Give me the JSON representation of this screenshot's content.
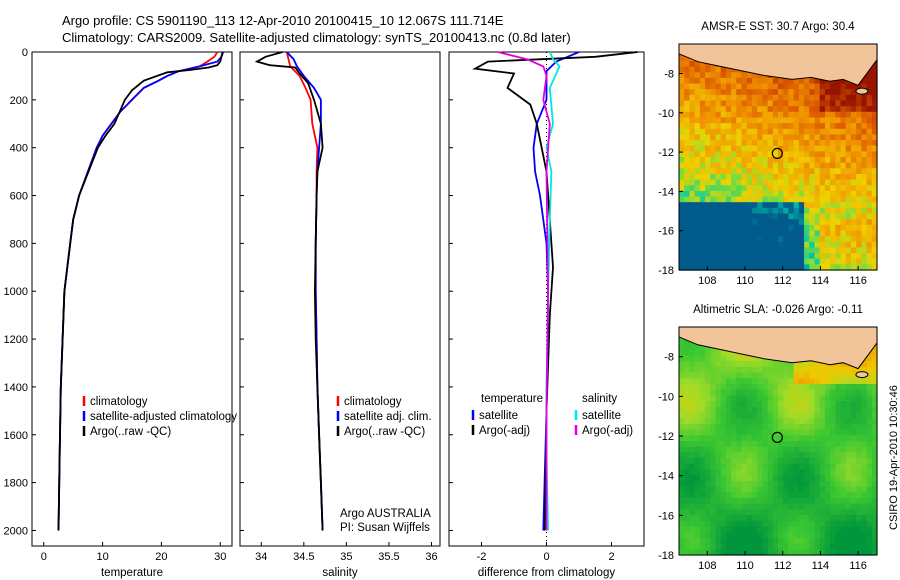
{
  "title": {
    "line1": "Argo profile: CS 5901190_113 12-Apr-2010 20100415_10 12.067S 111.714E",
    "line2": "Climatology: CARS2009. Satellite-adjusted climatology: synTS_20100413.nc (0.8d later)"
  },
  "stamp": "CSIRO 19-Apr-2010 10:30:46",
  "colors": {
    "climatology": "#ff0000",
    "satellite": "#0000ff",
    "argo": "#000000",
    "sal_satellite": "#00e5e5",
    "sal_argo": "#e000e0",
    "land": "#f2c49a"
  },
  "chart_data": [
    {
      "type": "line",
      "xlabel": "temperature",
      "ylabel": "",
      "xlim": [
        -2,
        32
      ],
      "ylim": [
        2000,
        0
      ],
      "xticks": [
        0,
        10,
        20,
        30
      ],
      "yticks": [
        0,
        200,
        400,
        600,
        800,
        1000,
        1200,
        1400,
        1600,
        1800,
        2000
      ],
      "legend": {
        "position": "lower-right",
        "entries": [
          "climatology",
          "satellite-adjusted climatology",
          "Argo(..raw -QC)"
        ]
      },
      "series": [
        {
          "name": "climatology",
          "color": "#ff0000",
          "x": [
            29.5,
            29.0,
            27.8,
            26.5,
            23.0,
            21.0,
            19.5,
            17.0,
            15.0,
            13.0,
            11.5,
            10.0,
            9.0,
            7.5,
            6.0,
            5.0,
            4.5,
            4.0,
            3.5,
            3.2,
            2.9,
            2.7,
            2.5
          ],
          "y": [
            0,
            20,
            40,
            60,
            80,
            100,
            120,
            150,
            200,
            250,
            300,
            350,
            400,
            500,
            600,
            700,
            800,
            900,
            1000,
            1200,
            1400,
            1700,
            2000
          ]
        },
        {
          "name": "satellite-adjusted climatology",
          "color": "#0000ff",
          "x": [
            30.5,
            30.2,
            29.5,
            26.5,
            23.0,
            21.0,
            19.5,
            17.0,
            15.0,
            13.0,
            11.5,
            10.0,
            9.0,
            7.5,
            6.0,
            5.0,
            4.5,
            4.0,
            3.5,
            3.2,
            2.9,
            2.7,
            2.5
          ],
          "y": [
            0,
            20,
            40,
            60,
            80,
            100,
            120,
            150,
            200,
            250,
            300,
            350,
            400,
            500,
            600,
            700,
            800,
            900,
            1000,
            1200,
            1400,
            1700,
            2000
          ]
        },
        {
          "name": "Argo(..raw -QC)",
          "color": "#000000",
          "x": [
            30.4,
            30.2,
            30.0,
            29.5,
            28.0,
            25.0,
            21.0,
            17.0,
            15.0,
            13.8,
            12.0,
            10.5,
            9.2,
            7.6,
            6.0,
            5.0,
            4.5,
            4.0,
            3.5,
            3.2,
            2.9,
            2.7,
            2.5
          ],
          "y": [
            0,
            20,
            40,
            55,
            65,
            75,
            85,
            120,
            160,
            200,
            300,
            350,
            400,
            500,
            600,
            700,
            800,
            900,
            1000,
            1200,
            1400,
            1700,
            2000
          ]
        }
      ]
    },
    {
      "type": "line",
      "xlabel": "salinity",
      "ylabel": "",
      "xlim": [
        33.75,
        36.1
      ],
      "ylim": [
        2000,
        0
      ],
      "xticks": [
        34,
        34.5,
        35,
        35.5,
        36
      ],
      "legend": {
        "position": "lower-right",
        "entries": [
          "climatology",
          "satellite adj. clim.",
          "Argo(..raw -QC)"
        ]
      },
      "annotation": [
        "Argo AUSTRALIA",
        "PI: Susan Wijffels"
      ],
      "series": [
        {
          "name": "climatology",
          "color": "#ff0000",
          "x": [
            34.3,
            34.32,
            34.34,
            34.45,
            34.52,
            34.58,
            34.6,
            34.66,
            34.65,
            34.65,
            34.64,
            34.64,
            34.65,
            34.66,
            34.68,
            34.7,
            34.72
          ],
          "y": [
            0,
            30,
            60,
            100,
            150,
            200,
            300,
            400,
            500,
            600,
            800,
            1000,
            1200,
            1400,
            1600,
            1800,
            2000
          ]
        },
        {
          "name": "satellite adj. clim.",
          "color": "#0000ff",
          "x": [
            34.3,
            34.38,
            34.42,
            34.5,
            34.62,
            34.7,
            34.7,
            34.68,
            34.66,
            34.65,
            34.64,
            34.64,
            34.65,
            34.66,
            34.68,
            34.7,
            34.72
          ],
          "y": [
            0,
            30,
            60,
            100,
            150,
            200,
            300,
            400,
            500,
            600,
            800,
            1000,
            1200,
            1400,
            1600,
            1800,
            2000
          ]
        },
        {
          "name": "Argo(..raw -QC)",
          "color": "#000000",
          "x": [
            34.25,
            34.05,
            33.95,
            34.1,
            34.4,
            34.45,
            34.55,
            34.62,
            34.7,
            34.72,
            34.66,
            34.65,
            34.64,
            34.63,
            34.64,
            34.66,
            34.68,
            34.7,
            34.72
          ],
          "y": [
            0,
            20,
            40,
            55,
            65,
            90,
            130,
            200,
            300,
            400,
            500,
            600,
            800,
            1000,
            1200,
            1400,
            1600,
            1800,
            2000
          ]
        }
      ]
    },
    {
      "type": "line",
      "xlabel": "difference from climatology",
      "ylabel": "",
      "xlim": [
        -3,
        3
      ],
      "ylim": [
        2000,
        0
      ],
      "xticks": [
        -2,
        0,
        2
      ],
      "legend": {
        "position": "lower",
        "temperature": [
          "satellite",
          "Argo(-adj)"
        ],
        "salinity": [
          "satellite",
          "Argo(-adj)"
        ]
      },
      "series": [
        {
          "name": "temperature satellite",
          "color": "#0000ff",
          "x": [
            1.0,
            0.3,
            0.0,
            0.0,
            -0.3,
            -0.4,
            -0.35,
            -0.2,
            0.0,
            0.05,
            0.0,
            -0.1
          ],
          "y": [
            0,
            40,
            80,
            200,
            300,
            400,
            500,
            600,
            800,
            1000,
            1500,
            2000
          ]
        },
        {
          "name": "temperature Argo(-adj)",
          "color": "#000000",
          "x": [
            2.8,
            1.5,
            -1.8,
            -2.2,
            -1.0,
            -1.2,
            -0.5,
            -0.3,
            0.0,
            0.1,
            0.2,
            0.1,
            0.0,
            -0.05
          ],
          "y": [
            0,
            20,
            40,
            70,
            90,
            150,
            220,
            300,
            500,
            700,
            900,
            1100,
            1500,
            2000
          ]
        },
        {
          "name": "salinity satellite",
          "color": "#00e5e5",
          "x": [
            0.1,
            0.2,
            0.4,
            0.1,
            0.2,
            0.0,
            0.15,
            0.1,
            0.05,
            0.0,
            0.0,
            0.05
          ],
          "y": [
            0,
            30,
            60,
            150,
            300,
            400,
            500,
            700,
            1000,
            1400,
            1700,
            2000
          ]
        },
        {
          "name": "salinity Argo(-adj)",
          "color": "#e000e0",
          "x": [
            -1.5,
            -0.6,
            -0.1,
            0.0,
            -0.1,
            0.1,
            0.0,
            0.05,
            0.0,
            0.0
          ],
          "y": [
            0,
            30,
            60,
            100,
            200,
            300,
            500,
            1000,
            1500,
            2000
          ]
        }
      ]
    },
    {
      "type": "heatmap",
      "title": "AMSR-E SST: 30.7 Argo: 30.4",
      "xlim": [
        106.5,
        117
      ],
      "ylim": [
        -18,
        -6.5
      ],
      "xticks": [
        108,
        110,
        112,
        114,
        116
      ],
      "yticks": [
        -8,
        -10,
        -12,
        -14,
        -16,
        -18
      ],
      "marker": {
        "lon": 111.714,
        "lat": -12.067
      }
    },
    {
      "type": "heatmap",
      "title": "Altimetric SLA: -0.026 Argo: -0.11",
      "xlim": [
        106.5,
        117
      ],
      "ylim": [
        -18,
        -6.5
      ],
      "xticks": [
        108,
        110,
        112,
        114,
        116
      ],
      "yticks": [
        -8,
        -10,
        -12,
        -14,
        -16,
        -18
      ],
      "marker": {
        "lon": 111.714,
        "lat": -12.067
      }
    }
  ]
}
